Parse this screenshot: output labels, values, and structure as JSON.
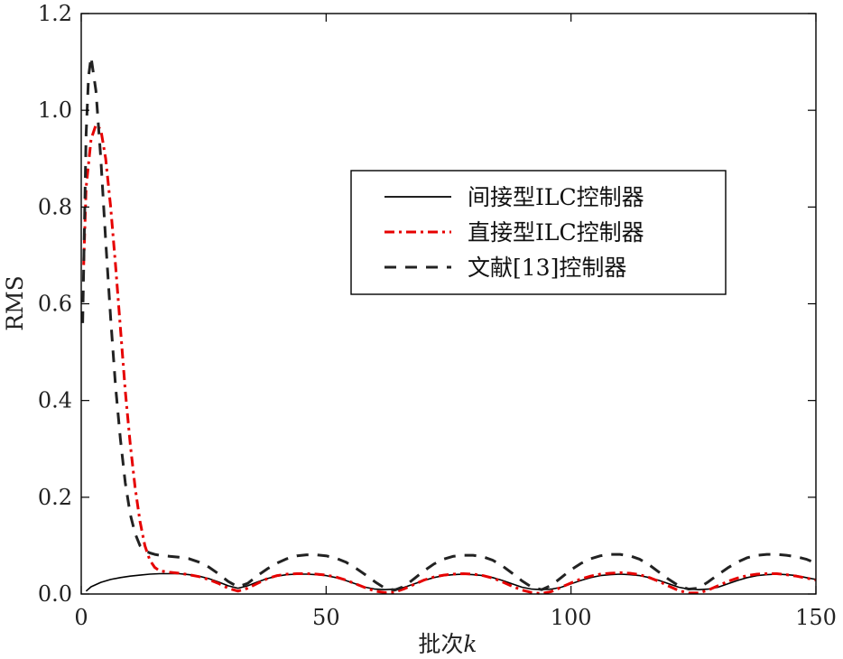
{
  "chart_data": {
    "type": "line",
    "title": "",
    "xlabel": "批次",
    "xlabel_var": "k",
    "ylabel": "RMS",
    "xlim": [
      0,
      150
    ],
    "ylim": [
      0,
      1.2
    ],
    "xticks": [
      0,
      50,
      100,
      150
    ],
    "xtick_labels": [
      "0",
      "50",
      "100",
      "150"
    ],
    "yticks": [
      0,
      0.2,
      0.4,
      0.6,
      0.8,
      1.0,
      1.2
    ],
    "ytick_labels": [
      "0.0",
      "0.2",
      "0.4",
      "0.6",
      "0.8",
      "1.0",
      "1.2"
    ],
    "grid": false,
    "legend_position": "center-right",
    "series": [
      {
        "name": "间接型ILC控制器",
        "color": "#000000",
        "style": "solid",
        "x": [
          1,
          2,
          4,
          6,
          8,
          10,
          12,
          14,
          16,
          18,
          20,
          22,
          24,
          26,
          28,
          30,
          32,
          34,
          36,
          38,
          40,
          42,
          44,
          46,
          48,
          50,
          52,
          54,
          56,
          58,
          60,
          62,
          64,
          66,
          68,
          70,
          72,
          74,
          76,
          78,
          80,
          82,
          84,
          86,
          88,
          90,
          92,
          94,
          96,
          98,
          100,
          102,
          104,
          106,
          108,
          110,
          112,
          114,
          116,
          118,
          120,
          122,
          124,
          126,
          128,
          130,
          132,
          134,
          136,
          138,
          140,
          142,
          144,
          146,
          148,
          150
        ],
        "y": [
          0.006,
          0.015,
          0.024,
          0.03,
          0.034,
          0.037,
          0.039,
          0.041,
          0.042,
          0.042,
          0.042,
          0.04,
          0.037,
          0.032,
          0.025,
          0.017,
          0.012,
          0.017,
          0.025,
          0.032,
          0.037,
          0.04,
          0.041,
          0.041,
          0.04,
          0.038,
          0.034,
          0.028,
          0.021,
          0.014,
          0.01,
          0.009,
          0.01,
          0.014,
          0.021,
          0.028,
          0.034,
          0.038,
          0.04,
          0.041,
          0.04,
          0.038,
          0.034,
          0.028,
          0.021,
          0.014,
          0.01,
          0.009,
          0.01,
          0.014,
          0.021,
          0.028,
          0.034,
          0.038,
          0.04,
          0.041,
          0.04,
          0.038,
          0.034,
          0.028,
          0.021,
          0.014,
          0.01,
          0.009,
          0.01,
          0.014,
          0.021,
          0.028,
          0.034,
          0.038,
          0.04,
          0.041,
          0.04,
          0.038,
          0.034,
          0.03
        ]
      },
      {
        "name": "直接型ILC控制器",
        "color": "#e60000",
        "style": "dashdot",
        "x": [
          0.5,
          1,
          2,
          3,
          4,
          5,
          6,
          7,
          8,
          9,
          10,
          11,
          12,
          13,
          14,
          15,
          16,
          18,
          20,
          22,
          24,
          26,
          28,
          30,
          32,
          34,
          36,
          38,
          40,
          42,
          44,
          46,
          48,
          50,
          52,
          54,
          56,
          58,
          60,
          62,
          64,
          66,
          68,
          70,
          72,
          74,
          76,
          78,
          80,
          82,
          84,
          86,
          88,
          90,
          92,
          94,
          96,
          98,
          100,
          102,
          104,
          106,
          108,
          110,
          112,
          114,
          116,
          118,
          120,
          122,
          124,
          126,
          128,
          130,
          132,
          134,
          136,
          138,
          140,
          142,
          144,
          146,
          148,
          150
        ],
        "y": [
          0.68,
          0.84,
          0.94,
          0.97,
          0.96,
          0.9,
          0.8,
          0.68,
          0.55,
          0.42,
          0.31,
          0.22,
          0.15,
          0.1,
          0.07,
          0.055,
          0.048,
          0.045,
          0.043,
          0.04,
          0.036,
          0.03,
          0.022,
          0.012,
          0.006,
          0.012,
          0.022,
          0.032,
          0.038,
          0.041,
          0.042,
          0.042,
          0.041,
          0.039,
          0.035,
          0.029,
          0.021,
          0.013,
          0.006,
          0.003,
          0.004,
          0.011,
          0.02,
          0.029,
          0.035,
          0.039,
          0.041,
          0.042,
          0.041,
          0.038,
          0.033,
          0.025,
          0.016,
          0.008,
          0.003,
          0.001,
          0.005,
          0.014,
          0.023,
          0.031,
          0.037,
          0.041,
          0.043,
          0.044,
          0.043,
          0.04,
          0.034,
          0.026,
          0.016,
          0.007,
          0.002,
          0.002,
          0.008,
          0.017,
          0.026,
          0.033,
          0.038,
          0.041,
          0.042,
          0.042,
          0.04,
          0.037,
          0.033,
          0.029
        ]
      },
      {
        "name": "文献[13]控制器",
        "color": "#222222",
        "style": "dashed",
        "x": [
          0.3,
          1,
          1.5,
          2,
          3,
          4,
          5,
          6,
          7,
          8,
          9,
          10,
          11,
          12,
          13,
          14,
          15,
          16,
          18,
          20,
          22,
          24,
          26,
          28,
          30,
          32,
          34,
          36,
          38,
          40,
          42,
          44,
          46,
          48,
          50,
          52,
          54,
          56,
          58,
          60,
          62,
          64,
          66,
          68,
          70,
          72,
          74,
          76,
          78,
          80,
          82,
          84,
          86,
          88,
          90,
          92,
          94,
          96,
          98,
          100,
          102,
          104,
          106,
          108,
          110,
          112,
          114,
          116,
          118,
          120,
          122,
          124,
          126,
          128,
          130,
          132,
          134,
          136,
          138,
          140,
          142,
          144,
          146,
          148,
          150
        ],
        "y": [
          0.56,
          0.95,
          1.07,
          1.11,
          1.04,
          0.9,
          0.73,
          0.57,
          0.43,
          0.32,
          0.23,
          0.165,
          0.125,
          0.1,
          0.09,
          0.085,
          0.082,
          0.08,
          0.078,
          0.076,
          0.073,
          0.066,
          0.056,
          0.042,
          0.026,
          0.015,
          0.022,
          0.038,
          0.052,
          0.064,
          0.073,
          0.079,
          0.081,
          0.081,
          0.079,
          0.074,
          0.066,
          0.054,
          0.04,
          0.025,
          0.012,
          0.008,
          0.016,
          0.032,
          0.048,
          0.062,
          0.072,
          0.078,
          0.08,
          0.08,
          0.077,
          0.07,
          0.058,
          0.043,
          0.027,
          0.014,
          0.009,
          0.018,
          0.034,
          0.05,
          0.063,
          0.073,
          0.079,
          0.082,
          0.082,
          0.079,
          0.072,
          0.06,
          0.045,
          0.03,
          0.017,
          0.01,
          0.012,
          0.025,
          0.04,
          0.054,
          0.066,
          0.075,
          0.08,
          0.082,
          0.082,
          0.08,
          0.077,
          0.072,
          0.064
        ]
      }
    ]
  }
}
